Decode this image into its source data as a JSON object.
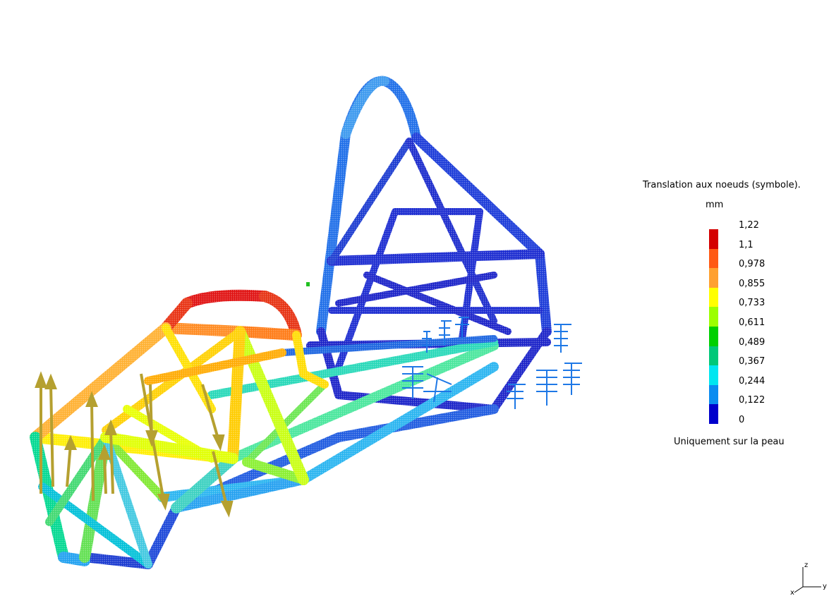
{
  "legend": {
    "title": "Translation aux noeuds (symbole).",
    "unit": "mm",
    "values": [
      "1,22",
      "1,1",
      "0,978",
      "0,855",
      "0,733",
      "0,611",
      "0,489",
      "0,367",
      "0,244",
      "0,122",
      "0"
    ],
    "colors": [
      "#d40000",
      "#ff5a14",
      "#ffa030",
      "#ffff00",
      "#9cff00",
      "#00d000",
      "#00c878",
      "#00e6f0",
      "#0a8cf0",
      "#0000cc"
    ],
    "footer": "Uniquement sur la peau"
  },
  "axis_triad": {
    "z_label": "z",
    "x_label": "x",
    "y_label": "y"
  },
  "model": {
    "name_icon": "tube-frame-chassis-deformation",
    "load_arrow_color": "#b5a030",
    "constraint_color": "#1e78e6"
  }
}
